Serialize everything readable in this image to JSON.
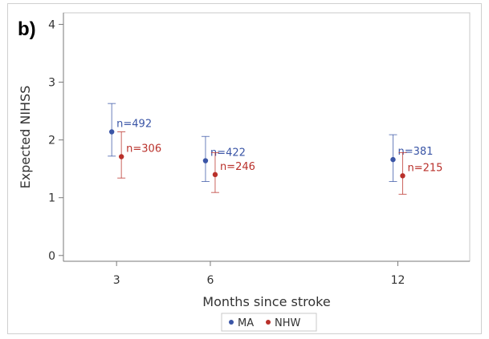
{
  "panel_label": "b)",
  "colors": {
    "MA": "#3a55a6",
    "NHW": "#b9302a",
    "axis": "#7a7a7a",
    "frame": "#c8c8c8"
  },
  "legend": {
    "items": [
      {
        "name": "MA",
        "color": "#3a55a6"
      },
      {
        "name": "NHW",
        "color": "#b9302a"
      }
    ],
    "placement": "bottom-center"
  },
  "chart_data": {
    "type": "scatter",
    "xlabel": "Months since stroke",
    "ylabel": "Expected NIHSS",
    "x_ticks": [
      3,
      6,
      12
    ],
    "y_ticks": [
      0,
      1,
      2,
      3,
      4
    ],
    "xlim": [
      1.3,
      14.3
    ],
    "ylim": [
      -0.1,
      4.2
    ],
    "grid": false,
    "series": [
      {
        "name": "MA",
        "points": [
          {
            "x": 3,
            "y": 2.14,
            "lower": 1.72,
            "upper": 2.63,
            "label": "n=492"
          },
          {
            "x": 6,
            "y": 1.64,
            "lower": 1.28,
            "upper": 2.06,
            "label": "n=422"
          },
          {
            "x": 12,
            "y": 1.66,
            "lower": 1.28,
            "upper": 2.09,
            "label": "n=381"
          }
        ]
      },
      {
        "name": "NHW",
        "points": [
          {
            "x": 3,
            "y": 1.71,
            "lower": 1.34,
            "upper": 2.14,
            "label": "n=306"
          },
          {
            "x": 6,
            "y": 1.4,
            "lower": 1.09,
            "upper": 1.78,
            "label": "n=246"
          },
          {
            "x": 12,
            "y": 1.38,
            "lower": 1.06,
            "upper": 1.78,
            "label": "n=215"
          }
        ]
      }
    ]
  }
}
